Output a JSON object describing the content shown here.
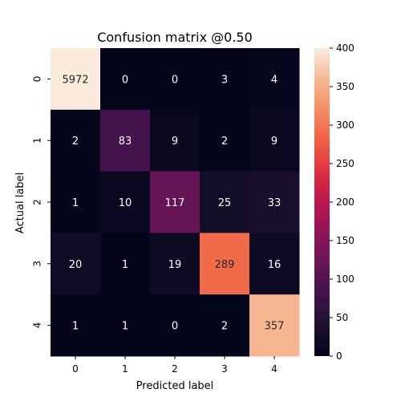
{
  "chart_data": {
    "type": "heatmap",
    "title": "Confusion matrix @0.50",
    "xlabel": "Predicted label",
    "ylabel": "Actual label",
    "x_categories": [
      "0",
      "1",
      "2",
      "3",
      "4"
    ],
    "y_categories": [
      "0",
      "1",
      "2",
      "3",
      "4"
    ],
    "values": [
      [
        5972,
        0,
        0,
        3,
        4
      ],
      [
        2,
        83,
        9,
        2,
        9
      ],
      [
        1,
        10,
        117,
        25,
        33
      ],
      [
        20,
        1,
        19,
        289,
        16
      ],
      [
        1,
        1,
        0,
        2,
        357
      ]
    ],
    "color_range": [
      0,
      400
    ],
    "colormap": "rocket",
    "colorbar_ticks": [
      "0",
      "50",
      "100",
      "150",
      "200",
      "250",
      "300",
      "350",
      "400"
    ],
    "grid": false
  }
}
